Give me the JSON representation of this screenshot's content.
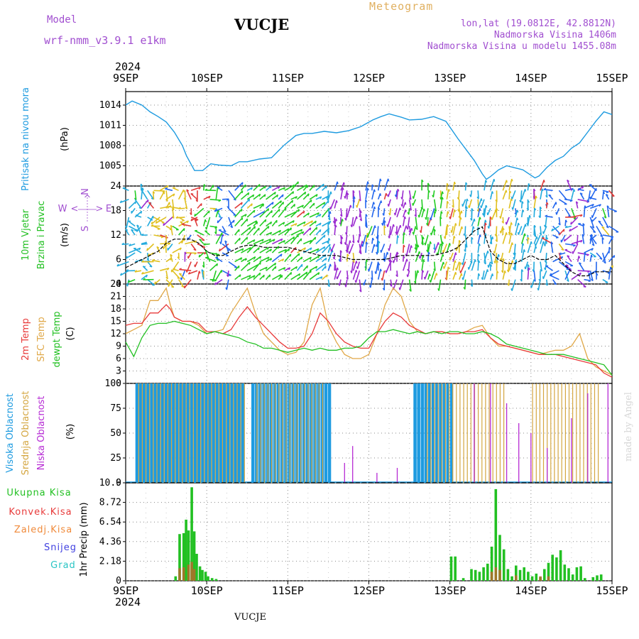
{
  "header": {
    "model_label": "Model",
    "model_name": "wrf-nmm_v3.9.1  e1km",
    "title": "VUCJE",
    "meteogram_label": "Meteogram",
    "lonlat": "lon,lat (19.0812E, 42.8812N)",
    "altitude": "Nadmorska Visina 1406m",
    "model_altitude": "Nadmorska Visina u modelu 1455.08m"
  },
  "footer": {
    "station": "VUCJE",
    "credit": "made by Angel"
  },
  "colors": {
    "pressure": "#1e9be0",
    "wind_black": "#000000",
    "temp2m": "#e83a3a",
    "sfc": "#e0a848",
    "dew": "#22c022",
    "high": "#1e9be0",
    "mid": "#d4a640",
    "low": "#b62bd4",
    "total": "#22c022",
    "conv": "#e83a3a",
    "snow": "#4040e0",
    "grad": "#28c4c4"
  },
  "chart_data": [
    {
      "type": "line",
      "panel": "pressure",
      "ylabel_left": "Pritisak na nivou mora",
      "unit": "(hPa)",
      "ylim": [
        1002,
        1016
      ],
      "yticks": [
        "1005",
        "1008",
        "1011",
        "1014"
      ],
      "x_days": [
        "9SEP",
        "10SEP",
        "11SEP",
        "12SEP",
        "13SEP",
        "14SEP",
        "15SEP"
      ],
      "year": "2024",
      "series": [
        {
          "x": [
            0,
            0.08,
            0.2,
            0.3,
            0.4,
            0.5,
            0.6,
            0.7,
            0.75,
            0.85,
            0.95,
            1.05,
            1.15,
            1.3,
            1.4,
            1.5,
            1.65,
            1.8,
            1.95,
            2.1,
            2.2,
            2.3,
            2.45,
            2.6,
            2.75,
            2.9,
            3.05,
            3.15,
            3.25,
            3.4,
            3.5,
            3.65,
            3.8,
            3.95,
            4.1,
            4.2,
            4.3,
            4.4,
            4.45,
            4.5,
            4.6,
            4.7,
            4.8,
            4.9,
            5.0,
            5.05,
            5.1,
            5.2,
            5.3,
            5.4,
            5.5,
            5.6,
            5.7,
            5.8,
            5.9,
            6.0
          ],
          "y": [
            1014,
            1014.6,
            1014,
            1013,
            1012.3,
            1011.5,
            1010,
            1008,
            1006.5,
            1004.3,
            1004.3,
            1005.3,
            1005.1,
            1005,
            1005.6,
            1005.6,
            1006,
            1006.2,
            1008,
            1009.5,
            1009.8,
            1009.8,
            1010.1,
            1009.9,
            1010.2,
            1010.8,
            1011.8,
            1012.3,
            1012.7,
            1012.2,
            1011.8,
            1011.9,
            1012.3,
            1011.6,
            1009,
            1007.4,
            1005.8,
            1003.8,
            1003,
            1003.4,
            1004.4,
            1005,
            1004.7,
            1004.4,
            1003.6,
            1003.2,
            1003.5,
            1004.8,
            1005.8,
            1006.4,
            1007.6,
            1008.4,
            1010,
            1011.6,
            1013,
            1012.6
          ]
        }
      ]
    },
    {
      "type": "line",
      "panel": "wind",
      "ylabel_left": "10m Vjetar",
      "ylabel_left2": "Brzina i Pravac",
      "unit": "(m/s)",
      "ylim": [
        0,
        24
      ],
      "yticks": [
        "0",
        "6",
        "12",
        "18",
        "24"
      ],
      "compass": {
        "w": "W",
        "e": "E",
        "n": "N",
        "s": "S",
        "top_arrows": "^",
        "left_arrow": "<",
        "right_arrow": ">"
      },
      "series": [
        {
          "name": "speed",
          "x": [
            0,
            0.1,
            0.2,
            0.3,
            0.4,
            0.5,
            0.6,
            0.7,
            0.8,
            0.9,
            1.0,
            1.1,
            1.2,
            1.3,
            1.4,
            1.5,
            1.6,
            1.7,
            1.8,
            1.9,
            2.0,
            2.2,
            2.4,
            2.6,
            2.8,
            3.0,
            3.2,
            3.4,
            3.6,
            3.8,
            4.0,
            4.1,
            4.2,
            4.3,
            4.4,
            4.5,
            4.6,
            4.7,
            4.8,
            4.9,
            5.0,
            5.1,
            5.2,
            5.3,
            5.4,
            5.5,
            5.6,
            5.7,
            5.8,
            5.9,
            6.0
          ],
          "y": [
            4,
            5,
            6,
            7,
            8,
            10,
            11,
            11,
            11,
            10,
            8,
            7,
            7,
            8,
            9,
            9.5,
            9.5,
            9,
            9,
            9,
            9,
            8,
            7,
            7,
            6,
            6,
            6,
            7,
            7,
            7,
            8,
            9,
            11,
            13,
            14,
            8,
            6,
            5,
            5,
            6,
            7,
            6,
            6,
            7,
            5,
            3,
            2,
            2,
            3,
            3,
            3
          ]
        }
      ],
      "barb_colors": [
        "#2266ee",
        "#22aadd",
        "#22cc22",
        "#e0c020",
        "#e03a3a",
        "#9a2ad0"
      ]
    },
    {
      "type": "line",
      "panel": "temperature",
      "ylabel_left": [
        "2m Temp",
        "SFC Temp",
        "dewpt Temp"
      ],
      "unit": "(C)",
      "ylim": [
        0,
        24
      ],
      "yticks": [
        "0",
        "3",
        "6",
        "9",
        "12",
        "15",
        "18",
        "21",
        "24"
      ],
      "series": [
        {
          "name": "2m Temp",
          "x": [
            0,
            0.1,
            0.2,
            0.3,
            0.4,
            0.5,
            0.55,
            0.6,
            0.7,
            0.8,
            0.9,
            1.0,
            1.1,
            1.2,
            1.3,
            1.4,
            1.5,
            1.6,
            1.7,
            1.8,
            1.9,
            2.0,
            2.1,
            2.2,
            2.3,
            2.4,
            2.5,
            2.6,
            2.7,
            2.8,
            2.9,
            3.0,
            3.1,
            3.2,
            3.3,
            3.4,
            3.5,
            3.6,
            3.7,
            3.8,
            3.9,
            4.0,
            4.1,
            4.2,
            4.3,
            4.4,
            4.5,
            4.6,
            4.7,
            4.8,
            4.9,
            5.0,
            5.1,
            5.2,
            5.3,
            5.4,
            5.5,
            5.6,
            5.7,
            5.8,
            5.9,
            6.0
          ],
          "y": [
            14,
            14.5,
            14.5,
            17,
            17,
            19,
            18,
            16,
            15,
            15,
            14.5,
            12.5,
            12.5,
            12,
            13,
            16,
            18.5,
            16,
            14,
            12,
            10,
            8.5,
            8.5,
            9,
            12,
            17,
            15,
            12,
            10,
            9,
            8.5,
            8.5,
            12,
            15,
            17,
            16,
            14,
            13,
            12,
            12.5,
            12.5,
            12,
            12,
            12.5,
            12.5,
            13,
            11,
            9.5,
            9,
            8.5,
            8,
            7.5,
            7,
            7,
            7,
            6.5,
            6,
            5.5,
            5,
            4.5,
            2.5,
            1.5
          ]
        },
        {
          "name": "SFC Temp",
          "x": [
            0,
            0.1,
            0.2,
            0.3,
            0.4,
            0.5,
            0.55,
            0.6,
            0.7,
            0.8,
            0.9,
            1.0,
            1.1,
            1.2,
            1.3,
            1.4,
            1.5,
            1.6,
            1.7,
            1.8,
            1.9,
            2.0,
            2.1,
            2.2,
            2.3,
            2.4,
            2.5,
            2.6,
            2.7,
            2.8,
            2.9,
            3.0,
            3.1,
            3.2,
            3.3,
            3.4,
            3.5,
            3.6,
            3.7,
            3.8,
            3.9,
            4.0,
            4.1,
            4.2,
            4.3,
            4.4,
            4.5,
            4.6,
            4.7,
            4.8,
            4.9,
            5.0,
            5.1,
            5.2,
            5.3,
            5.4,
            5.5,
            5.6,
            5.7,
            5.8,
            5.9,
            6.0
          ],
          "y": [
            12,
            13,
            14,
            20,
            20,
            23,
            19,
            16,
            15,
            15,
            14,
            12,
            12.5,
            13,
            17,
            20,
            23,
            17,
            12,
            10,
            8,
            7,
            7.5,
            10,
            19,
            23,
            14,
            10,
            7,
            6,
            6,
            7,
            12,
            19,
            23,
            21,
            15,
            12.5,
            12,
            12.5,
            12.5,
            12,
            12,
            12.5,
            13.5,
            14,
            11,
            9,
            9,
            8.5,
            8,
            7.5,
            7,
            7.5,
            8,
            8,
            9,
            12,
            6,
            4,
            3,
            2
          ]
        },
        {
          "name": "dewpt Temp",
          "x": [
            0,
            0.1,
            0.2,
            0.3,
            0.4,
            0.5,
            0.6,
            0.7,
            0.8,
            0.9,
            1.0,
            1.1,
            1.2,
            1.3,
            1.4,
            1.5,
            1.6,
            1.7,
            1.8,
            1.9,
            2.0,
            2.1,
            2.2,
            2.3,
            2.4,
            2.5,
            2.6,
            2.7,
            2.8,
            2.9,
            3.0,
            3.1,
            3.2,
            3.3,
            3.4,
            3.5,
            3.6,
            3.7,
            3.8,
            3.9,
            4.0,
            4.1,
            4.2,
            4.3,
            4.4,
            4.5,
            4.6,
            4.7,
            4.8,
            4.9,
            5.0,
            5.1,
            5.2,
            5.3,
            5.4,
            5.5,
            5.6,
            5.7,
            5.8,
            5.9,
            6.0
          ],
          "y": [
            10,
            6.5,
            11,
            14,
            14.5,
            14.5,
            15,
            14.5,
            14,
            13,
            12,
            12.5,
            12,
            11.5,
            11,
            10,
            9.5,
            8.5,
            8.5,
            8,
            7.5,
            8,
            8.5,
            8,
            8.5,
            8,
            8,
            8.5,
            8.5,
            9,
            11,
            12.5,
            12.5,
            13,
            12.5,
            12,
            12.5,
            12,
            12.5,
            12,
            12.5,
            12.5,
            12,
            12,
            12.5,
            12,
            11,
            9.5,
            9,
            8.5,
            8,
            7.5,
            7,
            7,
            7,
            6.5,
            6,
            5.5,
            5,
            4.5,
            2
          ]
        }
      ]
    },
    {
      "type": "bar",
      "panel": "clouds",
      "ylabel_left": [
        "Visoka Oblacnost",
        "Srednja Oblacnost",
        "Niska Oblacnost"
      ],
      "unit": "(%)",
      "ylim": [
        0,
        100
      ],
      "yticks": [
        "0",
        "25",
        "50",
        "75",
        "100"
      ],
      "series": [
        {
          "name": "Visoka Oblacnost",
          "x_range": [
            [
              0.12,
              1.45
            ],
            [
              1.55,
              2.53
            ],
            [
              3.55,
              4.0
            ]
          ],
          "value": 100
        },
        {
          "name": "Srednja Oblacnost",
          "x_range": [
            [
              0.14,
              1.5
            ],
            [
              1.6,
              2.45
            ],
            [
              3.7,
              4.7
            ],
            [
              5.0,
              5.85
            ]
          ],
          "value": 100
        },
        {
          "name": "Niska Oblacnost",
          "spikes": [
            [
              2.7,
              20
            ],
            [
              2.8,
              37
            ],
            [
              3.1,
              10
            ],
            [
              3.35,
              15
            ],
            [
              4.3,
              100
            ],
            [
              4.5,
              100
            ],
            [
              4.7,
              80
            ],
            [
              4.85,
              60
            ],
            [
              5.0,
              50
            ],
            [
              5.2,
              35
            ],
            [
              5.5,
              65
            ],
            [
              5.7,
              90
            ],
            [
              5.95,
              100
            ]
          ]
        }
      ]
    },
    {
      "type": "bar",
      "panel": "precip",
      "ylabel_left": [
        "Ukupna Kisa",
        "Konvek.Kisa",
        "Zaledj.Kisa",
        "Snijeg",
        "Grad"
      ],
      "unit": "1hr Precip (mm)",
      "ylim": [
        0,
        10.9
      ],
      "yticks": [
        "0",
        "2.18",
        "4.36",
        "6.54",
        "8.72",
        "10.9"
      ],
      "series": [
        {
          "name": "Ukupna Kisa",
          "x": [
            0.6,
            0.65,
            0.7,
            0.73,
            0.76,
            0.8,
            0.83,
            0.86,
            0.9,
            0.93,
            0.97,
            1.0,
            1.05,
            1.1,
            4.0,
            4.05,
            4.15,
            4.25,
            4.3,
            4.35,
            4.4,
            4.45,
            4.5,
            4.55,
            4.6,
            4.65,
            4.7,
            4.75,
            4.8,
            4.85,
            4.9,
            4.95,
            5.0,
            5.05,
            5.1,
            5.15,
            5.2,
            5.25,
            5.3,
            5.35,
            5.4,
            5.45,
            5.5,
            5.55,
            5.6,
            5.65,
            5.75,
            5.8,
            5.85
          ],
          "y": [
            0.5,
            5.2,
            5.3,
            6.8,
            5.6,
            10.4,
            5.5,
            3.0,
            1.6,
            1.2,
            1.0,
            0.5,
            0.3,
            0.2,
            2.7,
            2.7,
            0.3,
            1.3,
            1.2,
            1.0,
            1.5,
            1.9,
            3.8,
            10.2,
            5.1,
            3.5,
            1.3,
            0.5,
            1.7,
            1.2,
            1.5,
            1.0,
            0.5,
            0.8,
            0.4,
            1.3,
            2.0,
            2.9,
            2.6,
            3.4,
            1.8,
            1.4,
            0.7,
            1.5,
            1.6,
            0.3,
            0.4,
            0.6,
            0.7
          ]
        },
        {
          "name": "Konvek.Kisa",
          "x": [
            0.65,
            0.7,
            0.76,
            0.8,
            0.83,
            4.5,
            4.55,
            4.6,
            4.8,
            5.1,
            5.2
          ],
          "y": [
            1.4,
            1.5,
            1.8,
            2.1,
            1.3,
            1.0,
            1.5,
            1.2,
            0.6,
            0.5,
            0.5
          ]
        }
      ]
    }
  ]
}
